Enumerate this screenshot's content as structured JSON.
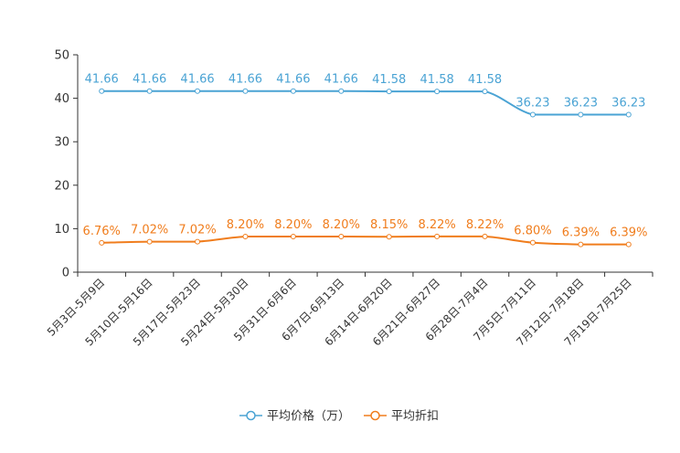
{
  "chart_data": {
    "type": "line",
    "categories": [
      "5月3日-5月9日",
      "5月10日-5月16日",
      "5月17日-5月23日",
      "5月24日-5月30日",
      "5月31日-6月6日",
      "6月7日-6月13日",
      "6月14日-6月20日",
      "6月21日-6月27日",
      "6月28日-7月4日",
      "7月5日-7月11日",
      "7月12日-7月18日",
      "7月19日-7月25日"
    ],
    "series": [
      {
        "name": "平均价格（万）",
        "color": "#4aa3d4",
        "values": [
          41.66,
          41.66,
          41.66,
          41.66,
          41.66,
          41.66,
          41.58,
          41.58,
          41.58,
          36.23,
          36.23,
          36.23
        ],
        "labels": [
          "41.66",
          "41.66",
          "41.66",
          "41.66",
          "41.66",
          "41.66",
          "41.58",
          "41.58",
          "41.58",
          "36.23",
          "36.23",
          "36.23"
        ]
      },
      {
        "name": "平均折扣",
        "color": "#f07d1d",
        "values": [
          6.76,
          7.02,
          7.02,
          8.2,
          8.2,
          8.2,
          8.15,
          8.22,
          8.22,
          6.8,
          6.39,
          6.39
        ],
        "labels": [
          "6.76%",
          "7.02%",
          "7.02%",
          "8.20%",
          "8.20%",
          "8.20%",
          "8.15%",
          "8.22%",
          "8.22%",
          "6.80%",
          "6.39%",
          "6.39%"
        ]
      }
    ],
    "yticks": [
      "0",
      "10",
      "20",
      "30",
      "40",
      "50"
    ],
    "ylim": [
      0,
      50
    ],
    "title": "",
    "xlabel": "",
    "ylabel": "",
    "legend_position": "bottom-center"
  }
}
